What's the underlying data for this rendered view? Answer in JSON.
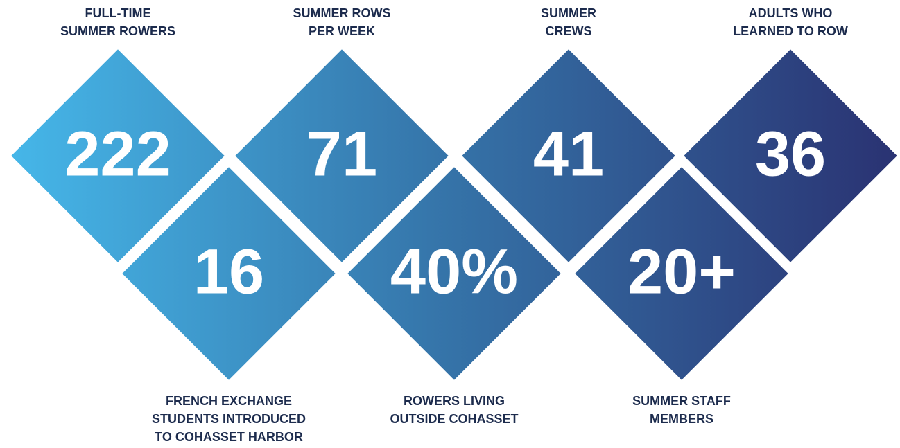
{
  "stats": {
    "top": [
      {
        "value": "222",
        "label": [
          "FULL-TIME",
          "SUMMER ROWERS"
        ]
      },
      {
        "value": "71",
        "label": [
          "SUMMER ROWS",
          "PER WEEK"
        ]
      },
      {
        "value": "41",
        "label": [
          "SUMMER",
          "CREWS"
        ]
      },
      {
        "value": "36",
        "label": [
          "ADULTS WHO",
          "LEARNED TO ROW"
        ]
      }
    ],
    "bottom": [
      {
        "value": "16",
        "label": [
          "FRENCH EXCHANGE",
          "STUDENTS INTRODUCED",
          "TO COHASSET HARBOR"
        ]
      },
      {
        "value": "40%",
        "label": [
          "ROWERS LIVING",
          "OUTSIDE COHASSET"
        ]
      },
      {
        "value": "20+",
        "label": [
          "SUMMER STAFF",
          "MEMBERS"
        ]
      }
    ]
  }
}
